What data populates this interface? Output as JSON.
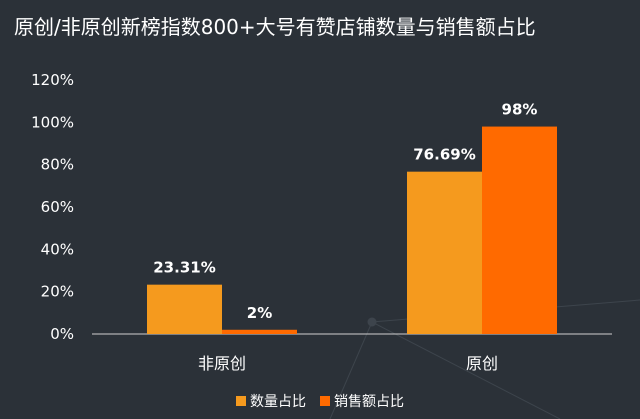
{
  "colors": {
    "background": "#2b3138",
    "series_quantity": "#f59a1e",
    "series_sales": "#ff6a00",
    "axis_line": "#d0d0d0"
  },
  "chart_data": {
    "type": "bar",
    "title": "原创/非原创新榜指数800+大号有赞店铺数量与销售额占比",
    "categories": [
      "非原创",
      "原创"
    ],
    "series": [
      {
        "name": "数量占比",
        "values": [
          23.31,
          76.69
        ],
        "labels": [
          "23.31%",
          "76.69%"
        ]
      },
      {
        "name": "销售额占比",
        "values": [
          2,
          98
        ],
        "labels": [
          "2%",
          "98%"
        ]
      }
    ],
    "ylim": [
      0,
      120
    ],
    "yticks": [
      0,
      20,
      40,
      60,
      80,
      100,
      120
    ],
    "ytick_labels": [
      "0%",
      "20%",
      "40%",
      "60%",
      "80%",
      "100%",
      "120%"
    ],
    "xlabel": "",
    "ylabel": "",
    "grid": false,
    "legend_position": "bottom"
  }
}
